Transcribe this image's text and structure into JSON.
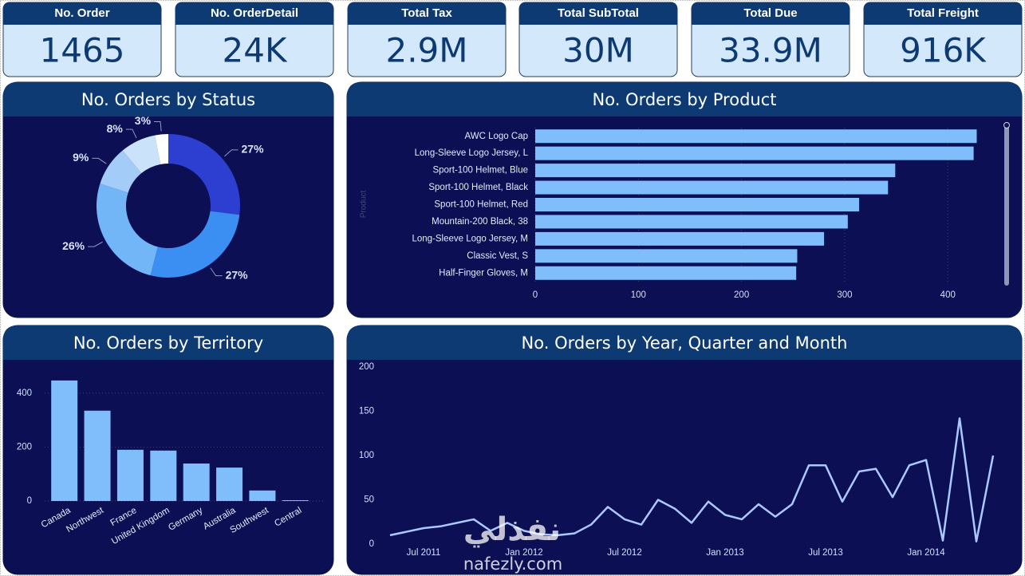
{
  "kpis": [
    {
      "label": "No. Order",
      "value": "1465"
    },
    {
      "label": "No. OrderDetail",
      "value": "24K"
    },
    {
      "label": "Total Tax",
      "value": "2.9M"
    },
    {
      "label": "Total SubTotal",
      "value": "30M"
    },
    {
      "label": "Total Due",
      "value": "33.9M"
    },
    {
      "label": "Total Freight",
      "value": "916K"
    }
  ],
  "chart_data": [
    {
      "type": "donut",
      "title": "No. Orders by Status",
      "values": [
        27,
        27,
        26,
        9,
        8,
        3
      ],
      "value_labels": [
        "27%",
        "27%",
        "26%",
        "9%",
        "8%",
        "3%"
      ],
      "colors": [
        "#2d3fd0",
        "#3b8ff2",
        "#72b6f8",
        "#a3ccf8",
        "#cbe2fb",
        "#ffffff"
      ]
    },
    {
      "type": "hbar",
      "title": "No. Orders by Product",
      "y_label": "Product",
      "categories": [
        "AWC Logo Cap",
        "Long-Sleeve Logo Jersey, L",
        "Sport-100 Helmet, Blue",
        "Sport-100 Helmet, Black",
        "Sport-100 Helmet, Red",
        "Mountain-200 Black, 38",
        "Long-Sleeve Logo Jersey, M",
        "Classic Vest, S",
        "Half-Finger Gloves, M"
      ],
      "values": [
        428,
        425,
        349,
        342,
        314,
        303,
        280,
        254,
        253
      ],
      "color": "#80bdfb",
      "xlim": [
        0,
        440
      ],
      "xticks": [
        0,
        100,
        200,
        300,
        400
      ],
      "grid": true
    },
    {
      "type": "bar",
      "title": "No. Orders by Territory",
      "categories": [
        "Canada",
        "Northwest",
        "France",
        "United Kingdom",
        "Germany",
        "Australia",
        "Southwest",
        "Central"
      ],
      "values": [
        447,
        335,
        190,
        187,
        139,
        124,
        39,
        3
      ],
      "color": "#80bdfb",
      "ylim": [
        0,
        500
      ],
      "yticks": [
        0,
        200,
        400
      ],
      "grid": true
    },
    {
      "type": "line",
      "title": "No. Orders by Year, Quarter and Month",
      "x": [
        "2011-05",
        "2011-06",
        "2011-07",
        "2011-08",
        "2011-09",
        "2011-10",
        "2011-11",
        "2011-12",
        "2012-01",
        "2012-02",
        "2012-03",
        "2012-04",
        "2012-05",
        "2012-06",
        "2012-07",
        "2012-08",
        "2012-09",
        "2012-10",
        "2012-11",
        "2012-12",
        "2013-01",
        "2013-02",
        "2013-03",
        "2013-04",
        "2013-05",
        "2013-06",
        "2013-07",
        "2013-08",
        "2013-09",
        "2013-10",
        "2013-11",
        "2013-12",
        "2014-01",
        "2014-02",
        "2014-03",
        "2014-04",
        "2014-05"
      ],
      "values": [
        10,
        14,
        18,
        20,
        24,
        28,
        15,
        24,
        15,
        11,
        10,
        12,
        22,
        42,
        28,
        22,
        50,
        40,
        24,
        48,
        33,
        28,
        45,
        31,
        45,
        89,
        89,
        48,
        82,
        85,
        53,
        89,
        95,
        4,
        142,
        3,
        100
      ],
      "color": "#a9c9ff",
      "ylim": [
        0,
        200
      ],
      "yticks": [
        0,
        50,
        100,
        150,
        200
      ],
      "xticks": [
        {
          "value": "2011-07",
          "label": "Jul 2011"
        },
        {
          "value": "2012-01",
          "label": "Jan 2012"
        },
        {
          "value": "2012-07",
          "label": "Jul 2012"
        },
        {
          "value": "2013-01",
          "label": "Jan 2013"
        },
        {
          "value": "2013-07",
          "label": "Jul 2013"
        },
        {
          "value": "2014-01",
          "label": "Jan 2014"
        }
      ],
      "grid": false
    }
  ],
  "watermark": {
    "arabic": "نفذلي",
    "latin": "nafezly.com"
  }
}
